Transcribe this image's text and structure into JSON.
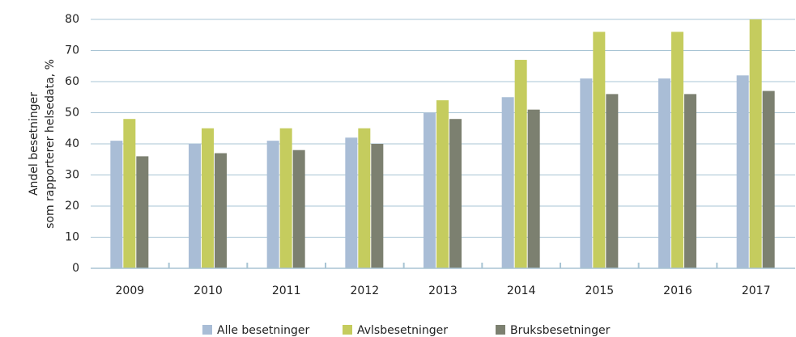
{
  "chart_data": {
    "type": "bar",
    "y_label": [
      "Andel besetninger",
      "som rapporterer helsedata, %"
    ],
    "categories": [
      "2009",
      "2010",
      "2011",
      "2012",
      "2013",
      "2014",
      "2015",
      "2016",
      "2017"
    ],
    "series": [
      {
        "name": "Alle besetninger",
        "color": "#a9bdd6",
        "values": [
          41,
          40,
          41,
          42,
          50,
          55,
          61,
          61,
          62
        ]
      },
      {
        "name": "Avlsbesetninger",
        "color": "#c5cc5e",
        "values": [
          48,
          45,
          45,
          45,
          54,
          67,
          76,
          76,
          80
        ]
      },
      {
        "name": "Bruksbesetninger",
        "color": "#7c8070",
        "values": [
          36,
          37,
          38,
          40,
          48,
          51,
          56,
          56,
          57
        ]
      }
    ],
    "ylim": [
      0,
      80
    ],
    "yticks": [
      0,
      10,
      20,
      30,
      40,
      50,
      60,
      70,
      80
    ],
    "grid": true,
    "legend": "bottom"
  }
}
